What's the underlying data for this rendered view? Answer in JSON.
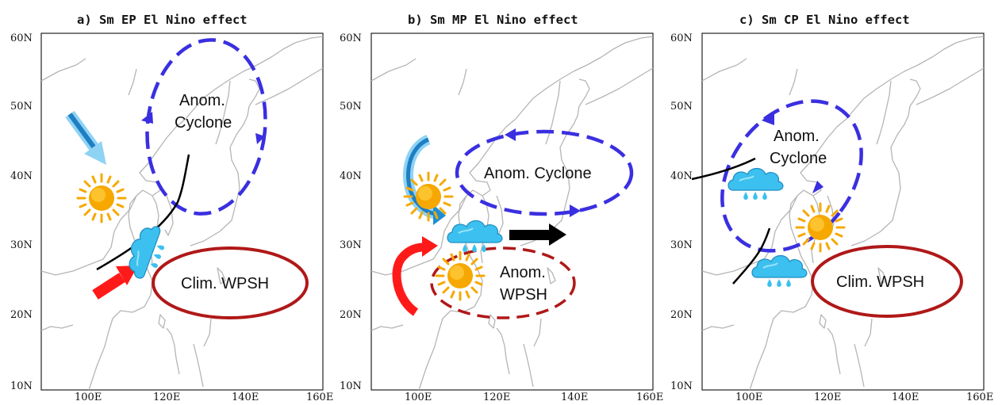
{
  "panels": [
    {
      "title": "a) Sm EP El Nino effect",
      "y_ticks": [
        "60N",
        "50N",
        "40N",
        "30N",
        "20N",
        "10N"
      ],
      "x_ticks": [
        "100E",
        "120E",
        "140E",
        "160E"
      ],
      "labels": {
        "cyclone_line1": "Anom.",
        "cyclone_line2": "Cyclone",
        "wpsh": "Clim. WPSH"
      }
    },
    {
      "title": "b) Sm MP El Nino effect",
      "y_ticks": [
        "60N",
        "50N",
        "40N",
        "30N",
        "20N",
        "10N"
      ],
      "x_ticks": [
        "100E",
        "120E",
        "140E",
        "160E"
      ],
      "labels": {
        "cyclone": "Anom. Cyclone",
        "wpsh_line1": "Anom.",
        "wpsh_line2": "WPSH"
      }
    },
    {
      "title": "c) Sm CP El Nino effect",
      "y_ticks": [
        "60N",
        "50N",
        "40N",
        "30N",
        "20N",
        "10N"
      ],
      "x_ticks": [
        "100E",
        "120E",
        "140E",
        "160E"
      ],
      "labels": {
        "cyclone_line1": "Anom.",
        "cyclone_line2": "Cyclone",
        "wpsh": "Clim. WPSH"
      }
    }
  ],
  "colors": {
    "cyclone": "#3a2fe0",
    "wpsh": "#b01818",
    "warm_arrow": "#ff1a1a",
    "cold_arrow": "#1fa0e0",
    "sun": "#f6a800",
    "cloud": "#37b8e8",
    "front": "#000000"
  },
  "icons": [
    "sun-icon",
    "rain-cloud-icon",
    "arrow-icon"
  ]
}
